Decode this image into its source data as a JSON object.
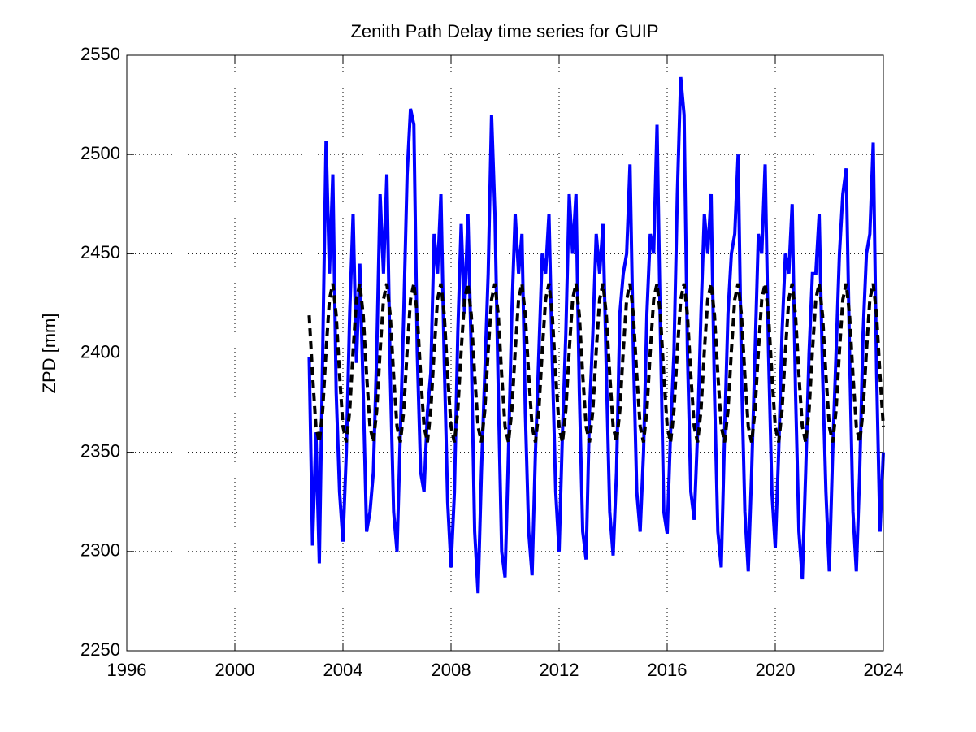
{
  "chart_data": {
    "type": "line",
    "title": "Zenith Path Delay time series for GUIP",
    "y_label": "ZPD [mm]",
    "xlim": [
      1996,
      2024
    ],
    "xticks": [
      1996,
      2000,
      2004,
      2008,
      2012,
      2016,
      2020,
      2024
    ],
    "ylim": [
      2250,
      2550
    ],
    "yticks": [
      2250,
      2300,
      2350,
      2400,
      2450,
      2500,
      2550
    ],
    "grid": true,
    "x": [
      2002.75,
      2002.875,
      2003,
      2003.125,
      2003.25,
      2003.375,
      2003.5,
      2003.625,
      2003.75,
      2003.875,
      2004,
      2004.125,
      2004.25,
      2004.375,
      2004.5,
      2004.625,
      2004.75,
      2004.875,
      2005,
      2005.125,
      2005.25,
      2005.375,
      2005.5,
      2005.625,
      2005.75,
      2005.875,
      2006,
      2006.125,
      2006.25,
      2006.375,
      2006.5,
      2006.625,
      2006.75,
      2006.875,
      2007,
      2007.125,
      2007.25,
      2007.375,
      2007.5,
      2007.625,
      2007.75,
      2007.875,
      2008,
      2008.125,
      2008.25,
      2008.375,
      2008.5,
      2008.625,
      2008.75,
      2008.875,
      2009,
      2009.125,
      2009.25,
      2009.375,
      2009.5,
      2009.625,
      2009.75,
      2009.875,
      2010,
      2010.125,
      2010.25,
      2010.375,
      2010.5,
      2010.625,
      2010.75,
      2010.875,
      2011,
      2011.125,
      2011.25,
      2011.375,
      2011.5,
      2011.625,
      2011.75,
      2011.875,
      2012,
      2012.125,
      2012.25,
      2012.375,
      2012.5,
      2012.625,
      2012.75,
      2012.875,
      2013,
      2013.125,
      2013.25,
      2013.375,
      2013.5,
      2013.625,
      2013.75,
      2013.875,
      2014,
      2014.125,
      2014.25,
      2014.375,
      2014.5,
      2014.625,
      2014.75,
      2014.875,
      2015,
      2015.125,
      2015.25,
      2015.375,
      2015.5,
      2015.625,
      2015.75,
      2015.875,
      2016,
      2016.125,
      2016.25,
      2016.375,
      2016.5,
      2016.625,
      2016.75,
      2016.875,
      2017,
      2017.125,
      2017.25,
      2017.375,
      2017.5,
      2017.625,
      2017.75,
      2017.875,
      2018,
      2018.125,
      2018.25,
      2018.375,
      2018.5,
      2018.625,
      2018.75,
      2018.875,
      2019,
      2019.125,
      2019.25,
      2019.375,
      2019.5,
      2019.625,
      2019.75,
      2019.875,
      2020,
      2020.125,
      2020.25,
      2020.375,
      2020.5,
      2020.625,
      2020.75,
      2020.875,
      2021,
      2021.125,
      2021.25,
      2021.375,
      2021.5,
      2021.625,
      2021.75,
      2021.875,
      2022,
      2022.125,
      2022.25,
      2022.375,
      2022.5,
      2022.625,
      2022.75,
      2022.875,
      2023,
      2023.125,
      2023.25,
      2023.375,
      2023.5,
      2023.625,
      2023.75,
      2023.875,
      2024
    ],
    "series": [
      {
        "color": "#0000ff",
        "linestyle": "solid",
        "values": [
          2398,
          2303,
          2360,
          2294,
          2400,
          2507,
          2440,
          2490,
          2380,
          2330,
          2305,
          2350,
          2420,
          2470,
          2395,
          2445,
          2380,
          2310,
          2320,
          2340,
          2400,
          2480,
          2440,
          2490,
          2390,
          2320,
          2300,
          2360,
          2420,
          2490,
          2523,
          2515,
          2400,
          2340,
          2330,
          2370,
          2390,
          2460,
          2440,
          2480,
          2395,
          2325,
          2292,
          2330,
          2410,
          2465,
          2420,
          2470,
          2400,
          2310,
          2279,
          2340,
          2390,
          2440,
          2520,
          2470,
          2380,
          2300,
          2287,
          2350,
          2420,
          2470,
          2440,
          2460,
          2370,
          2310,
          2288,
          2350,
          2400,
          2450,
          2440,
          2470,
          2395,
          2330,
          2300,
          2360,
          2410,
          2480,
          2450,
          2480,
          2380,
          2310,
          2296,
          2370,
          2410,
          2460,
          2440,
          2465,
          2390,
          2320,
          2298,
          2340,
          2420,
          2440,
          2450,
          2495,
          2400,
          2330,
          2310,
          2350,
          2420,
          2460,
          2450,
          2515,
          2410,
          2320,
          2309,
          2360,
          2400,
          2480,
          2539,
          2520,
          2400,
          2330,
          2316,
          2360,
          2420,
          2470,
          2450,
          2480,
          2380,
          2310,
          2292,
          2360,
          2420,
          2450,
          2460,
          2500,
          2390,
          2320,
          2290,
          2340,
          2400,
          2460,
          2450,
          2495,
          2400,
          2330,
          2302,
          2350,
          2410,
          2450,
          2440,
          2475,
          2380,
          2310,
          2286,
          2340,
          2400,
          2440,
          2440,
          2470,
          2390,
          2330,
          2290,
          2350,
          2400,
          2450,
          2480,
          2493,
          2400,
          2320,
          2290,
          2340,
          2410,
          2450,
          2460,
          2506,
          2390,
          2310,
          2350
        ]
      },
      {
        "color": "#000000",
        "linestyle": "dashed",
        "values": [
          2419,
          2389,
          2363,
          2355,
          2371,
          2401,
          2427,
          2435,
          2419,
          2389,
          2363,
          2355,
          2371,
          2401,
          2427,
          2435,
          2419,
          2389,
          2363,
          2355,
          2371,
          2401,
          2427,
          2435,
          2419,
          2389,
          2363,
          2355,
          2371,
          2401,
          2427,
          2435,
          2419,
          2389,
          2363,
          2355,
          2371,
          2401,
          2427,
          2435,
          2419,
          2389,
          2363,
          2355,
          2371,
          2401,
          2427,
          2435,
          2419,
          2389,
          2363,
          2355,
          2371,
          2401,
          2427,
          2435,
          2419,
          2389,
          2363,
          2355,
          2371,
          2401,
          2427,
          2435,
          2419,
          2389,
          2363,
          2355,
          2371,
          2401,
          2427,
          2435,
          2419,
          2389,
          2363,
          2355,
          2371,
          2401,
          2427,
          2435,
          2419,
          2389,
          2363,
          2355,
          2371,
          2401,
          2427,
          2435,
          2419,
          2389,
          2363,
          2355,
          2371,
          2401,
          2427,
          2435,
          2419,
          2389,
          2363,
          2355,
          2371,
          2401,
          2427,
          2435,
          2419,
          2389,
          2363,
          2355,
          2371,
          2401,
          2427,
          2435,
          2419,
          2389,
          2363,
          2355,
          2371,
          2401,
          2427,
          2435,
          2419,
          2389,
          2363,
          2355,
          2371,
          2401,
          2427,
          2435,
          2419,
          2389,
          2363,
          2355,
          2371,
          2401,
          2427,
          2435,
          2419,
          2389,
          2363,
          2355,
          2371,
          2401,
          2427,
          2435,
          2419,
          2389,
          2363,
          2355,
          2371,
          2401,
          2427,
          2435,
          2419,
          2389,
          2363,
          2355,
          2371,
          2401,
          2427,
          2435,
          2419,
          2389,
          2363,
          2355,
          2371,
          2401,
          2427,
          2435,
          2419,
          2389,
          2363
        ]
      }
    ]
  }
}
